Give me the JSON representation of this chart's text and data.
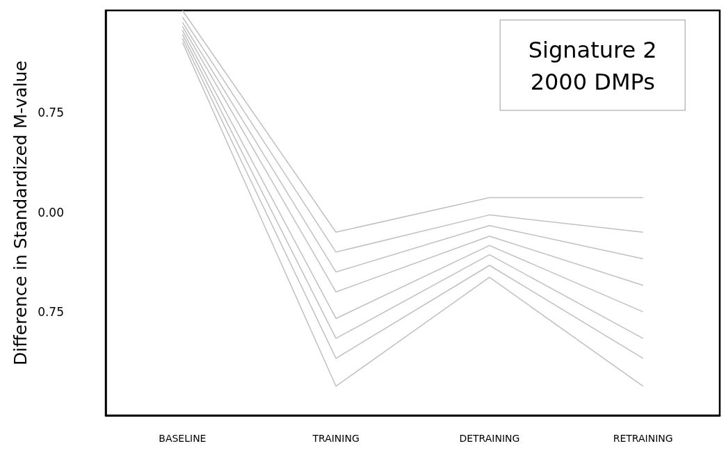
{
  "chart_data": {
    "type": "line",
    "ylabel": "Difference in Standardized M-value",
    "categories": [
      "BASELINE",
      "TRAINING",
      "DETRAINING",
      "RETRAINING"
    ],
    "relative": false,
    "ylim": [
      -1.53,
      1.52
    ],
    "yticks": [
      {
        "value": -0.75,
        "label": "0.75"
      },
      {
        "value": 0,
        "label": "0.00"
      },
      {
        "value": 0.75,
        "label": "0.75"
      }
    ],
    "grid": false,
    "annotations": [
      "Signature 2",
      "2000 DMPs"
    ],
    "series": [
      {
        "color": "#c0c0c0",
        "values": [
          1.52,
          -0.15,
          0.11,
          0.11
        ]
      },
      {
        "color": "#c0c0c0",
        "values": [
          1.47,
          -0.3,
          -0.02,
          -0.15
        ]
      },
      {
        "color": "#c0c0c0",
        "values": [
          1.43,
          -0.45,
          -0.1,
          -0.35
        ]
      },
      {
        "color": "#c0c0c0",
        "values": [
          1.4,
          -0.6,
          -0.18,
          -0.55
        ]
      },
      {
        "color": "#c0c0c0",
        "values": [
          1.37,
          -0.8,
          -0.25,
          -0.75
        ]
      },
      {
        "color": "#c0c0c0",
        "values": [
          1.34,
          -0.95,
          -0.32,
          -0.95
        ]
      },
      {
        "color": "#c0c0c0",
        "values": [
          1.31,
          -1.1,
          -0.4,
          -1.1
        ]
      },
      {
        "color": "#c0c0c0",
        "values": [
          1.28,
          -1.31,
          -0.49,
          -1.31
        ]
      }
    ]
  }
}
